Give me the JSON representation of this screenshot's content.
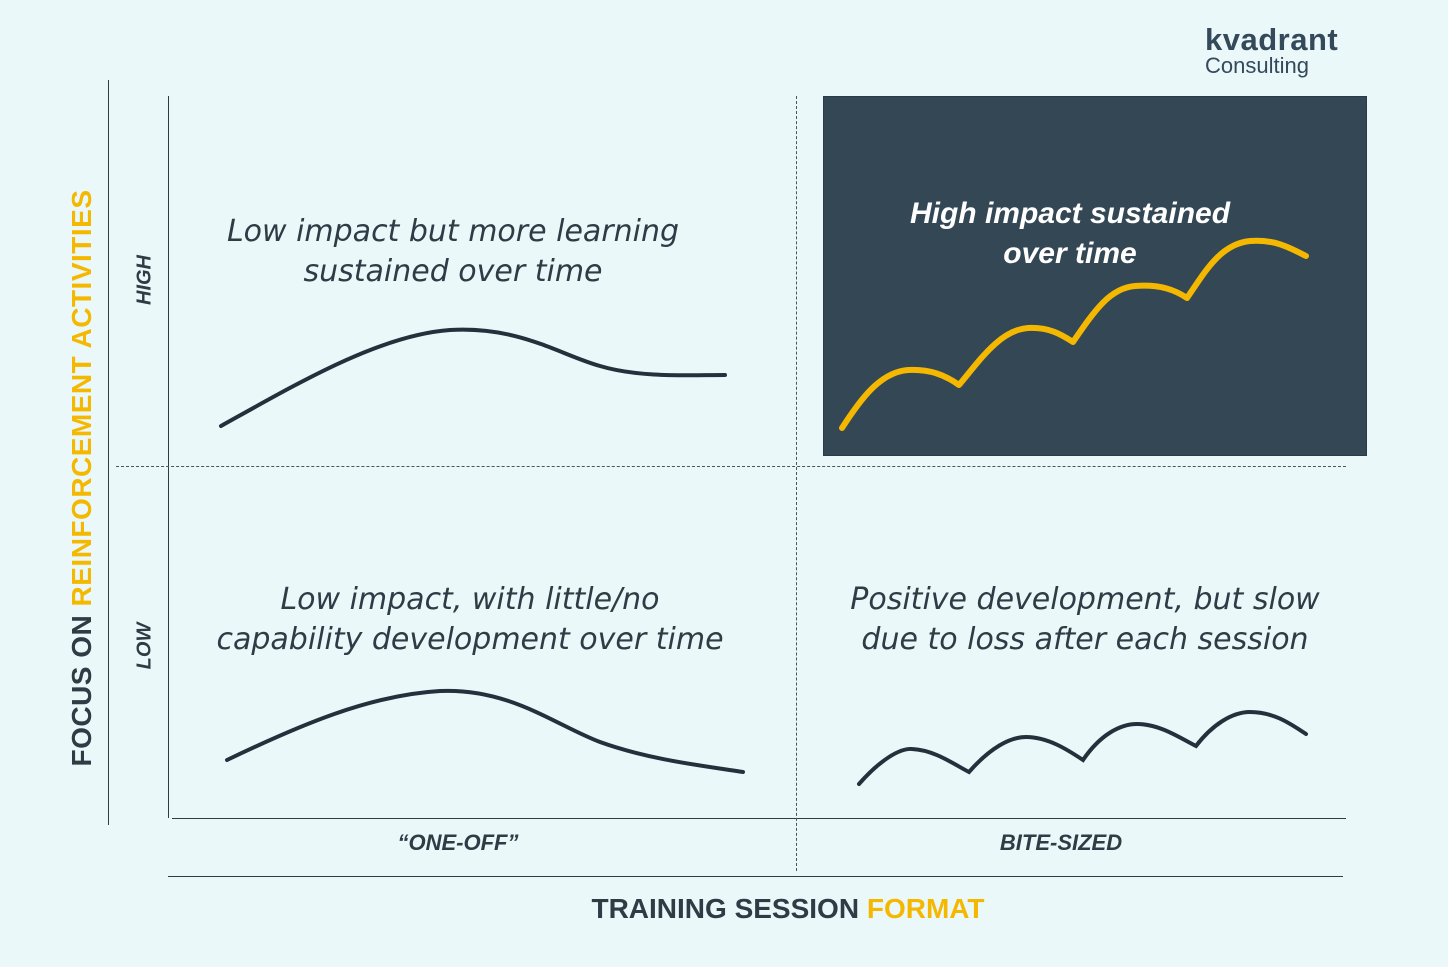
{
  "logo": {
    "brand": "kvadrant",
    "sub": "Consulting"
  },
  "y_axis": {
    "prefix": "FOCUS ON ",
    "accent": "REINFORCEMENT ACTIVITIES"
  },
  "levels": {
    "high": "HIGH",
    "low": "LOW"
  },
  "x_axis": {
    "prefix": "TRAINING SESSION ",
    "accent": "FORMAT"
  },
  "categories": {
    "left": "“ONE-OFF”",
    "right": "BITE-SIZED"
  },
  "quadrants": {
    "top_left": [
      "Low impact but more learning",
      "sustained over time"
    ],
    "top_right": [
      "High impact sustained",
      "over time"
    ],
    "bottom_left": [
      "Low impact, with little/no",
      "capability development over time"
    ],
    "bottom_right": [
      "Positive development, but slow",
      "due to loss after each session"
    ]
  },
  "colors": {
    "background": "#eaf8fa",
    "dark": "#2f3b45",
    "panel": "#344755",
    "accent": "#f5b800"
  }
}
